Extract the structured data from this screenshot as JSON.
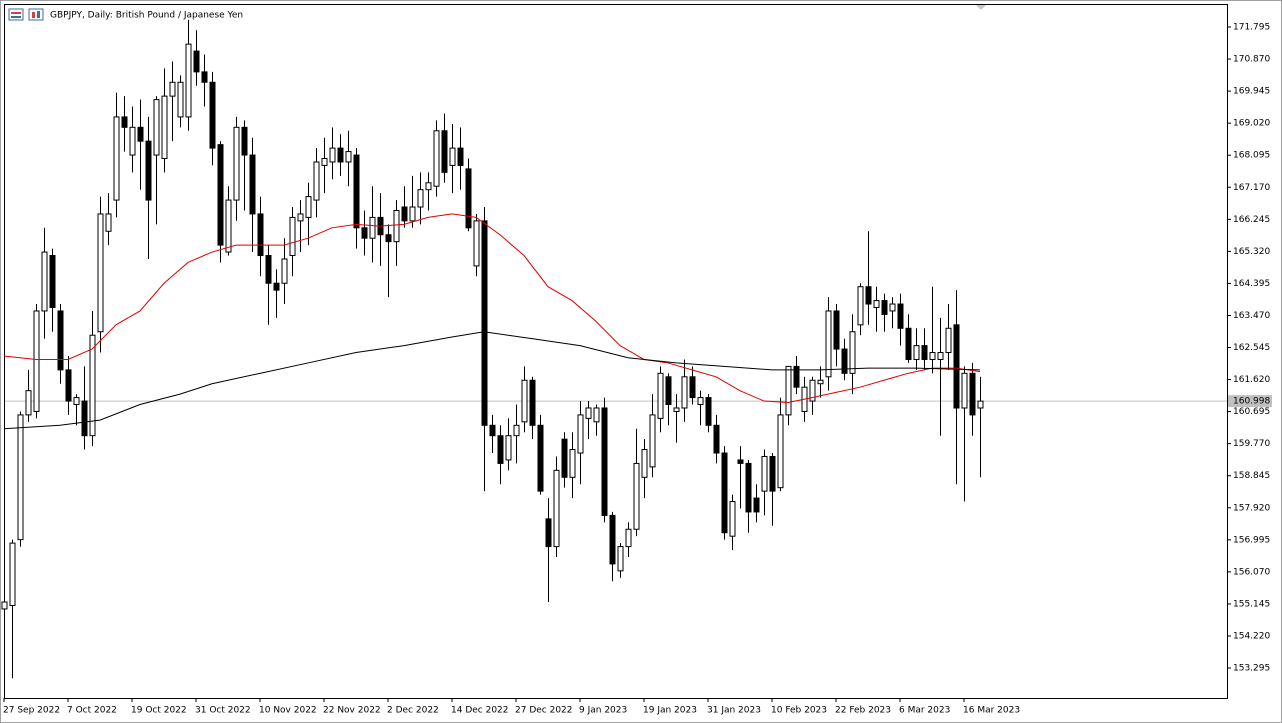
{
  "chart_data": {
    "type": "candlestick",
    "title": "GBPJPY, Daily:  British Pound / Japanese Yen",
    "ylim": [
      152.43,
      172.43
    ],
    "yticks": [
      171.795,
      {
        "value": 170.87,
        "label": "170.870"
      },
      169.945,
      {
        "value": 169.02,
        "label": "169.020"
      },
      168.095,
      {
        "value": 167.17,
        "label": "167.170"
      },
      166.245,
      {
        "value": 165.32,
        "label": "165.320"
      },
      164.395,
      {
        "value": 163.47,
        "label": "163.470"
      },
      162.545,
      {
        "value": 161.62,
        "label": "161.620"
      },
      160.695,
      {
        "value": 159.77,
        "label": "159.770"
      },
      158.845,
      {
        "value": 157.92,
        "label": "157.920"
      },
      156.995,
      {
        "value": 156.07,
        "label": "156.070"
      },
      155.145,
      {
        "value": 154.22,
        "label": "154.220"
      },
      153.295
    ],
    "last_price": 160.998,
    "up_color": "#ffffff",
    "down_color": "#000000",
    "categories": [
      "27 Sep 2022",
      null,
      null,
      null,
      null,
      null,
      null,
      null,
      "7 Oct 2022",
      null,
      null,
      null,
      null,
      null,
      null,
      null,
      "19 Oct 2022",
      null,
      null,
      null,
      null,
      null,
      null,
      null,
      "31 Oct 2022",
      null,
      null,
      null,
      null,
      null,
      null,
      null,
      "10 Nov 2022",
      null,
      null,
      null,
      null,
      null,
      null,
      null,
      "22 Nov 2022",
      null,
      null,
      null,
      null,
      null,
      null,
      null,
      "2 Dec 2022",
      null,
      null,
      null,
      null,
      null,
      null,
      null,
      "14 Dec 2022",
      null,
      null,
      null,
      null,
      null,
      null,
      null,
      "27 Dec 2022",
      null,
      null,
      null,
      null,
      null,
      null,
      null,
      "9 Jan 2023",
      null,
      null,
      null,
      null,
      null,
      null,
      null,
      "19 Jan 2023",
      null,
      null,
      null,
      null,
      null,
      null,
      null,
      "31 Jan 2023",
      null,
      null,
      null,
      null,
      null,
      null,
      null,
      "10 Feb 2023",
      null,
      null,
      null,
      null,
      null,
      null,
      null,
      "22 Feb 2023",
      null,
      null,
      null,
      null,
      null,
      null,
      null,
      "6 Mar 2023",
      null,
      null,
      null,
      null,
      null,
      null,
      null,
      "16 Mar 2023",
      null,
      null
    ],
    "ohlc": [
      [
        155.0,
        155.3,
        152.9,
        155.2
      ],
      [
        155.1,
        157.0,
        153.0,
        156.9
      ],
      [
        157.0,
        160.7,
        156.8,
        160.6
      ],
      [
        160.6,
        161.9,
        160.4,
        161.3
      ],
      [
        160.7,
        163.8,
        160.5,
        163.6
      ],
      [
        163.6,
        166.0,
        162.8,
        165.3
      ],
      [
        165.2,
        165.4,
        163.0,
        163.7
      ],
      [
        163.6,
        163.8,
        161.5,
        161.9
      ],
      [
        161.9,
        162.3,
        160.6,
        161.0
      ],
      [
        160.9,
        161.2,
        160.3,
        161.1
      ],
      [
        161.0,
        162.0,
        159.6,
        160.0
      ],
      [
        160.0,
        163.6,
        159.7,
        162.9
      ],
      [
        163.0,
        166.9,
        162.4,
        166.4
      ],
      [
        165.9,
        167.0,
        165.5,
        166.4
      ],
      [
        166.8,
        169.9,
        166.3,
        169.2
      ],
      [
        169.2,
        169.8,
        168.2,
        168.9
      ],
      [
        168.1,
        169.5,
        167.6,
        168.9
      ],
      [
        168.9,
        169.7,
        167.1,
        168.5
      ],
      [
        168.5,
        169.2,
        165.1,
        166.8
      ],
      [
        168.1,
        169.8,
        166.1,
        169.7
      ],
      [
        168.0,
        170.6,
        167.6,
        169.8
      ],
      [
        169.8,
        170.8,
        168.5,
        170.2
      ],
      [
        169.2,
        170.4,
        168.9,
        170.2
      ],
      [
        169.2,
        172.0,
        168.8,
        171.3
      ],
      [
        171.1,
        171.7,
        170.1,
        170.5
      ],
      [
        170.5,
        171.0,
        169.5,
        170.2
      ],
      [
        170.2,
        170.5,
        167.8,
        168.3
      ],
      [
        168.4,
        168.5,
        165.0,
        165.5
      ],
      [
        165.3,
        167.2,
        165.2,
        166.8
      ],
      [
        166.8,
        169.2,
        166.2,
        168.9
      ],
      [
        168.9,
        169.1,
        166.5,
        168.1
      ],
      [
        168.1,
        168.6,
        165.3,
        166.4
      ],
      [
        166.4,
        166.9,
        164.6,
        165.2
      ],
      [
        165.2,
        165.5,
        163.2,
        164.4
      ],
      [
        164.4,
        164.8,
        163.4,
        164.2
      ],
      [
        164.4,
        165.7,
        163.8,
        165.1
      ],
      [
        165.2,
        166.6,
        164.6,
        166.3
      ],
      [
        166.2,
        166.8,
        165.3,
        166.4
      ],
      [
        166.3,
        167.3,
        165.5,
        166.9
      ],
      [
        166.8,
        168.3,
        166.3,
        167.9
      ],
      [
        167.8,
        168.6,
        167.0,
        168.0
      ],
      [
        167.9,
        168.9,
        167.4,
        168.3
      ],
      [
        168.3,
        168.7,
        167.5,
        167.9
      ],
      [
        167.9,
        168.8,
        167.2,
        168.2
      ],
      [
        168.1,
        168.3,
        165.4,
        166.0
      ],
      [
        166.0,
        166.5,
        165.2,
        165.7
      ],
      [
        165.7,
        167.2,
        165.0,
        166.3
      ],
      [
        166.3,
        167.0,
        164.9,
        165.8
      ],
      [
        165.8,
        166.1,
        164.0,
        165.6
      ],
      [
        165.6,
        166.8,
        164.9,
        166.5
      ],
      [
        166.6,
        167.2,
        166.0,
        166.2
      ],
      [
        166.2,
        167.5,
        166.0,
        166.6
      ],
      [
        166.6,
        167.6,
        166.1,
        167.1
      ],
      [
        167.1,
        167.6,
        166.5,
        167.3
      ],
      [
        167.2,
        169.1,
        166.9,
        168.8
      ],
      [
        168.8,
        169.3,
        167.3,
        167.6
      ],
      [
        167.8,
        169.0,
        167.0,
        168.3
      ],
      [
        168.3,
        168.9,
        167.1,
        167.8
      ],
      [
        167.7,
        168.0,
        165.9,
        166.0
      ],
      [
        164.9,
        166.4,
        164.6,
        166.2
      ],
      [
        166.2,
        166.6,
        158.4,
        160.3
      ],
      [
        160.3,
        160.6,
        159.5,
        160.0
      ],
      [
        160.0,
        160.3,
        158.6,
        159.2
      ],
      [
        159.3,
        160.5,
        159.0,
        160.0
      ],
      [
        160.0,
        160.9,
        159.2,
        160.3
      ],
      [
        160.4,
        162.0,
        160.1,
        161.6
      ],
      [
        161.6,
        161.7,
        159.9,
        160.3
      ],
      [
        160.3,
        160.6,
        158.3,
        158.4
      ],
      [
        157.6,
        158.2,
        155.2,
        156.8
      ],
      [
        156.8,
        159.4,
        156.5,
        159.0
      ],
      [
        159.9,
        160.1,
        158.5,
        158.8
      ],
      [
        158.8,
        160.1,
        158.2,
        159.6
      ],
      [
        159.5,
        161.0,
        158.6,
        160.6
      ],
      [
        160.5,
        161.0,
        159.9,
        160.8
      ],
      [
        160.4,
        160.9,
        160.0,
        160.8
      ],
      [
        160.8,
        161.1,
        157.5,
        157.7
      ],
      [
        157.7,
        157.8,
        155.8,
        156.3
      ],
      [
        156.1,
        156.9,
        155.9,
        156.8
      ],
      [
        156.8,
        157.5,
        156.5,
        157.3
      ],
      [
        157.3,
        160.2,
        157.1,
        159.2
      ],
      [
        158.8,
        159.9,
        158.2,
        159.6
      ],
      [
        159.1,
        161.2,
        158.8,
        160.6
      ],
      [
        160.5,
        162.0,
        160.1,
        161.8
      ],
      [
        161.7,
        161.8,
        160.3,
        160.9
      ],
      [
        160.7,
        161.2,
        159.8,
        160.8
      ],
      [
        160.8,
        162.2,
        160.4,
        161.7
      ],
      [
        161.7,
        162.0,
        160.9,
        161.1
      ],
      [
        160.9,
        161.3,
        160.3,
        161.1
      ],
      [
        161.1,
        161.2,
        160.1,
        160.3
      ],
      [
        160.3,
        160.6,
        159.2,
        159.5
      ],
      [
        159.5,
        159.7,
        157.0,
        157.2
      ],
      [
        157.1,
        158.3,
        156.7,
        158.1
      ],
      [
        159.3,
        159.7,
        157.9,
        159.2
      ],
      [
        159.2,
        159.3,
        157.2,
        157.8
      ],
      [
        158.2,
        158.6,
        157.5,
        157.8
      ],
      [
        158.4,
        159.6,
        157.7,
        159.4
      ],
      [
        159.4,
        159.5,
        157.4,
        158.4
      ],
      [
        158.5,
        161.1,
        158.4,
        160.6
      ],
      [
        160.6,
        162.0,
        160.3,
        162.0
      ],
      [
        162.0,
        162.3,
        161.2,
        161.4
      ],
      [
        160.7,
        161.7,
        160.4,
        161.4
      ],
      [
        161.0,
        161.7,
        160.6,
        161.6
      ],
      [
        161.5,
        162.0,
        161.1,
        161.6
      ],
      [
        161.7,
        164.0,
        161.3,
        163.6
      ],
      [
        163.6,
        163.8,
        162.0,
        162.5
      ],
      [
        162.5,
        162.8,
        161.6,
        161.8
      ],
      [
        161.8,
        163.5,
        161.2,
        163.0
      ],
      [
        163.2,
        164.4,
        162.9,
        164.3
      ],
      [
        164.3,
        165.9,
        163.2,
        163.8
      ],
      [
        163.7,
        164.3,
        163.0,
        163.9
      ],
      [
        163.9,
        164.1,
        163.0,
        163.5
      ],
      [
        163.6,
        164.0,
        163.1,
        163.8
      ],
      [
        163.8,
        164.1,
        162.6,
        163.1
      ],
      [
        163.1,
        163.5,
        162.1,
        162.2
      ],
      [
        162.2,
        163.1,
        161.9,
        162.6
      ],
      [
        162.6,
        163.1,
        161.9,
        162.2
      ],
      [
        162.2,
        164.3,
        161.8,
        162.4
      ],
      [
        162.2,
        163.4,
        160.0,
        162.4
      ],
      [
        162.4,
        163.8,
        161.9,
        163.1
      ],
      [
        163.2,
        164.2,
        158.6,
        160.8
      ],
      [
        160.8,
        162.0,
        158.1,
        161.8
      ],
      [
        161.8,
        162.1,
        160.0,
        160.6
      ],
      [
        160.8,
        161.7,
        158.8,
        160.998
      ]
    ],
    "lines": [
      {
        "color": "#e00000",
        "x": [
          0,
          4,
          8,
          11,
          14,
          17,
          20,
          23,
          26,
          29,
          32,
          35,
          38,
          41,
          44,
          47,
          50,
          53,
          56,
          59,
          62,
          65,
          68,
          71,
          74,
          77,
          80,
          83,
          86,
          89,
          92,
          95,
          98,
          101,
          104,
          107,
          110,
          113,
          116,
          119,
          122
        ],
        "values": [
          162.3,
          162.2,
          162.2,
          162.5,
          163.2,
          163.6,
          164.4,
          165.0,
          165.3,
          165.5,
          165.5,
          165.5,
          165.7,
          166.0,
          166.1,
          166.05,
          166.1,
          166.3,
          166.4,
          166.3,
          165.8,
          165.2,
          164.3,
          163.9,
          163.3,
          162.6,
          162.2,
          162.1,
          161.9,
          161.7,
          161.3,
          161.0,
          160.96,
          161.1,
          161.25,
          161.4,
          161.6,
          161.8,
          161.95,
          161.95,
          161.85
        ]
      },
      {
        "color": "#000000",
        "x": [
          0,
          7,
          12,
          17,
          22,
          26,
          32,
          38,
          44,
          50,
          56,
          60,
          66,
          72,
          78,
          84,
          90,
          96,
          102,
          108,
          114,
          122
        ],
        "values": [
          160.2,
          160.3,
          160.45,
          160.9,
          161.2,
          161.5,
          161.8,
          162.1,
          162.4,
          162.6,
          162.85,
          163.0,
          162.8,
          162.6,
          162.25,
          162.1,
          162.0,
          161.9,
          161.9,
          161.95,
          161.95,
          161.9
        ]
      }
    ]
  }
}
